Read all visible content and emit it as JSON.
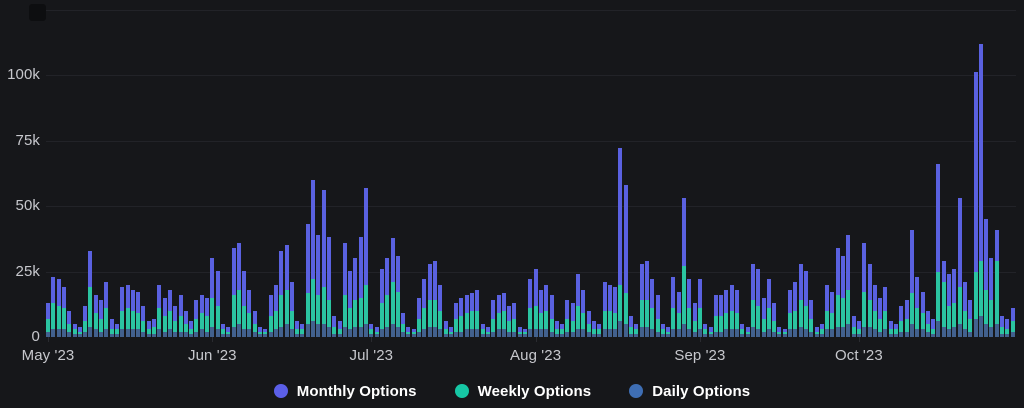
{
  "panel": {
    "background": "#16171a"
  },
  "chart_data": {
    "type": "bar",
    "stacked": true,
    "title": "",
    "xlabel": "",
    "ylabel": "",
    "unit": "thousands",
    "ylim": [
      0,
      125000
    ],
    "grid": true,
    "legend_position": "bottom-center",
    "stack_bottom_to_top": [
      "Daily Options",
      "Weekly Options",
      "Monthly Options"
    ],
    "y_axis": {
      "ticks": [
        {
          "value": 0,
          "label": "0"
        },
        {
          "value": 25,
          "label": "25k"
        },
        {
          "value": 50,
          "label": "50k"
        },
        {
          "value": 75,
          "label": "75k"
        },
        {
          "value": 100,
          "label": "100k"
        },
        {
          "value": 125,
          "label": ""
        }
      ]
    },
    "x_axis": {
      "ticks": [
        {
          "index": 0,
          "label": "May '23"
        },
        {
          "index": 31,
          "label": "Jun '23"
        },
        {
          "index": 61,
          "label": "Jul '23"
        },
        {
          "index": 92,
          "label": "Aug '23"
        },
        {
          "index": 123,
          "label": "Sep '23"
        },
        {
          "index": 153,
          "label": "Oct '23"
        }
      ]
    },
    "series": [
      {
        "name": "Monthly Options",
        "legend_color": "#5b5fe8",
        "bar_color": "#5a61e0",
        "values": [
          6,
          10,
          10,
          8,
          5,
          2,
          2,
          6,
          14,
          7,
          7,
          10,
          4,
          2,
          9,
          9,
          8,
          8,
          6,
          3,
          3,
          9,
          7,
          8,
          6,
          8,
          5,
          3,
          7,
          7,
          7,
          15,
          13,
          2,
          2,
          18,
          18,
          13,
          9,
          5,
          2,
          1,
          8,
          10,
          17,
          17,
          11,
          3,
          2,
          26,
          38,
          23,
          37,
          24,
          4,
          3,
          20,
          14,
          16,
          23,
          37,
          2,
          2,
          13,
          14,
          17,
          14,
          4,
          2,
          1,
          8,
          11,
          14,
          15,
          10,
          3,
          2,
          6,
          7,
          7,
          7,
          8,
          2,
          2,
          7,
          7,
          7,
          6,
          6,
          2,
          1,
          11,
          14,
          9,
          10,
          9,
          3,
          2,
          7,
          7,
          12,
          9,
          5,
          3,
          2,
          11,
          10,
          10,
          52,
          41,
          4,
          2,
          14,
          15,
          11,
          9,
          2,
          2,
          12,
          8,
          26,
          11,
          7,
          11,
          2,
          2,
          8,
          8,
          9,
          10,
          9,
          2,
          2,
          14,
          14,
          8,
          11,
          7,
          2,
          1,
          9,
          11,
          14,
          13,
          7,
          2,
          2,
          10,
          8,
          18,
          16,
          21,
          4,
          3,
          19,
          14,
          10,
          8,
          9,
          3,
          2,
          6,
          7,
          24,
          12,
          8,
          5,
          4,
          41,
          8,
          12,
          13,
          34,
          11,
          7,
          76,
          83,
          27,
          16,
          12,
          4,
          4,
          5
        ]
      },
      {
        "name": "Weekly Options",
        "legend_color": "#16c7a5",
        "bar_color": "#2bc4a1",
        "values": [
          5,
          10,
          9,
          8,
          3,
          2,
          1,
          4,
          15,
          6,
          5,
          8,
          2,
          2,
          7,
          8,
          7,
          6,
          4,
          2,
          3,
          8,
          6,
          7,
          4,
          6,
          3,
          2,
          5,
          6,
          6,
          11,
          9,
          2,
          1,
          12,
          13,
          9,
          6,
          3,
          1,
          1,
          6,
          7,
          12,
          13,
          7,
          2,
          2,
          12,
          16,
          11,
          14,
          10,
          3,
          2,
          12,
          8,
          10,
          11,
          15,
          2,
          1,
          10,
          12,
          16,
          13,
          3,
          1,
          1,
          5,
          8,
          10,
          10,
          7,
          2,
          1,
          5,
          6,
          6,
          7,
          7,
          2,
          1,
          5,
          6,
          7,
          4,
          5,
          1,
          1,
          8,
          9,
          6,
          7,
          5,
          2,
          2,
          5,
          4,
          9,
          6,
          3,
          2,
          2,
          7,
          7,
          6,
          14,
          12,
          3,
          2,
          10,
          10,
          8,
          5,
          2,
          1,
          8,
          6,
          22,
          8,
          4,
          8,
          2,
          1,
          6,
          6,
          6,
          7,
          6,
          2,
          1,
          10,
          9,
          5,
          8,
          4,
          1,
          1,
          6,
          7,
          10,
          9,
          5,
          1,
          2,
          7,
          6,
          12,
          11,
          13,
          3,
          2,
          13,
          10,
          7,
          5,
          7,
          2,
          2,
          4,
          5,
          12,
          8,
          6,
          3,
          2,
          19,
          17,
          9,
          9,
          14,
          7,
          5,
          18,
          21,
          13,
          10,
          24,
          3,
          2,
          4
        ]
      },
      {
        "name": "Daily Options",
        "legend_color": "#3e6eb4",
        "bar_color": "#42618e",
        "values": [
          2,
          3,
          3,
          3,
          2,
          1,
          1,
          2,
          4,
          3,
          2,
          3,
          1,
          1,
          3,
          3,
          3,
          3,
          2,
          1,
          1,
          3,
          2,
          3,
          2,
          2,
          2,
          1,
          2,
          3,
          2,
          4,
          3,
          1,
          1,
          4,
          5,
          3,
          3,
          2,
          1,
          1,
          2,
          3,
          4,
          5,
          3,
          1,
          1,
          5,
          6,
          5,
          5,
          4,
          1,
          1,
          4,
          3,
          4,
          4,
          5,
          1,
          1,
          3,
          4,
          5,
          4,
          2,
          1,
          1,
          2,
          3,
          4,
          4,
          3,
          1,
          1,
          2,
          2,
          3,
          3,
          3,
          1,
          1,
          2,
          3,
          3,
          2,
          2,
          1,
          1,
          3,
          3,
          3,
          3,
          2,
          1,
          1,
          2,
          2,
          3,
          3,
          2,
          1,
          1,
          3,
          3,
          3,
          6,
          5,
          1,
          1,
          4,
          4,
          3,
          2,
          1,
          1,
          3,
          3,
          5,
          3,
          2,
          3,
          1,
          1,
          2,
          2,
          3,
          3,
          3,
          1,
          1,
          4,
          3,
          2,
          3,
          2,
          1,
          1,
          3,
          3,
          4,
          3,
          2,
          1,
          1,
          3,
          3,
          4,
          4,
          5,
          1,
          1,
          4,
          4,
          3,
          2,
          3,
          1,
          1,
          2,
          2,
          5,
          3,
          3,
          2,
          1,
          6,
          4,
          3,
          4,
          5,
          3,
          2,
          7,
          8,
          5,
          4,
          5,
          1,
          1,
          2
        ]
      }
    ]
  }
}
